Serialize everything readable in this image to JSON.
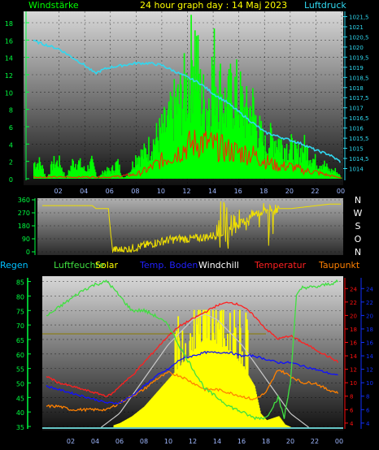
{
  "title": "24 hour graph day : 14 Maj 2023",
  "colors": {
    "wind": "#00ff00",
    "gust": "#ff2000",
    "pressure": "#30d8f0",
    "direction": "#f0e000",
    "humidity": "#40e040",
    "solar": "#ffff00",
    "soil_temp": "#1010ff",
    "windchill": "#ffffff",
    "temperature": "#ff2020",
    "dewpoint": "#ff8000",
    "rain": "#00c0ff",
    "axis_left": "#00ff40",
    "axis_right_red": "#ff1010",
    "axis_right_blue": "#1030ff"
  },
  "labels": {
    "windstaerke": "Windstärke",
    "luftdruck": "Luftdruck",
    "regen": "Regen",
    "luftfeuchte": "Luftfeuchte",
    "solar": "Solar",
    "temp_boden": "Temp. Boden",
    "windchill": "Windchill",
    "temperatur": "Temperatur",
    "taupunkt": "Taupunkt",
    "compass": [
      "N",
      "W",
      "S",
      "O",
      "N"
    ]
  },
  "chart_data": [
    {
      "type": "bar",
      "name": "wind-chart",
      "x_ticks": [
        "02",
        "04",
        "06",
        "08",
        "10",
        "12",
        "14",
        "16",
        "18",
        "20",
        "22",
        "00"
      ],
      "y_left_ticks": [
        "0",
        "2",
        "4",
        "6",
        "8",
        "10",
        "12",
        "14",
        "16",
        "18"
      ],
      "y_right_ticks": [
        "1014",
        "1014,5",
        "1015",
        "1015,5",
        "1016",
        "1016,5",
        "1017",
        "1017,5",
        "1018",
        "1018,5",
        "1019",
        "1019,5",
        "1020",
        "1020,5",
        "1021",
        "1021,5"
      ],
      "ylim_left": [
        0,
        18
      ],
      "ylim_right": [
        1013.5,
        1021.6
      ],
      "xlim": [
        0,
        24
      ],
      "wind_speed": [
        [
          0,
          2
        ],
        [
          0.5,
          2
        ],
        [
          1,
          0
        ],
        [
          1.5,
          2
        ],
        [
          2,
          2
        ],
        [
          2.5,
          0
        ],
        [
          3,
          2
        ],
        [
          3.5,
          2
        ],
        [
          4,
          1
        ],
        [
          4.5,
          2
        ],
        [
          5,
          0
        ],
        [
          5.5,
          1
        ],
        [
          6,
          1
        ],
        [
          6.5,
          2
        ],
        [
          7,
          0
        ],
        [
          7.5,
          1
        ],
        [
          8,
          3
        ],
        [
          8.5,
          3
        ],
        [
          9,
          4
        ],
        [
          9.5,
          5
        ],
        [
          10,
          6
        ],
        [
          10.5,
          7
        ],
        [
          11,
          9
        ],
        [
          11.5,
          10
        ],
        [
          12,
          12
        ],
        [
          12.5,
          17
        ],
        [
          13,
          10
        ],
        [
          13.5,
          9
        ],
        [
          14,
          14
        ],
        [
          14.5,
          11
        ],
        [
          15,
          9
        ],
        [
          15.5,
          11
        ],
        [
          16,
          10
        ],
        [
          16.5,
          8
        ],
        [
          17,
          9
        ],
        [
          17.5,
          6
        ],
        [
          18,
          4
        ],
        [
          18.5,
          5
        ],
        [
          19,
          5
        ],
        [
          19.5,
          4
        ],
        [
          20,
          4
        ],
        [
          20.5,
          3
        ],
        [
          21,
          4
        ],
        [
          21.5,
          3
        ],
        [
          22,
          2
        ],
        [
          22.5,
          2
        ],
        [
          23,
          1
        ],
        [
          23.5,
          1
        ],
        [
          24,
          0
        ]
      ],
      "gust_avg": [
        [
          0,
          0.2
        ],
        [
          2,
          0.2
        ],
        [
          4,
          0.2
        ],
        [
          6,
          0.2
        ],
        [
          8,
          0.5
        ],
        [
          9,
          1.2
        ],
        [
          10,
          2.2
        ],
        [
          11,
          3
        ],
        [
          12,
          4
        ],
        [
          13,
          4.5
        ],
        [
          14,
          4
        ],
        [
          15,
          3.5
        ],
        [
          16,
          3.2
        ],
        [
          17,
          3
        ],
        [
          18,
          2.2
        ],
        [
          19,
          1.5
        ],
        [
          20,
          1.5
        ],
        [
          21,
          1
        ],
        [
          22,
          0.8
        ],
        [
          23,
          0.4
        ],
        [
          24,
          0.1
        ]
      ],
      "pressure": [
        [
          0,
          1020.3
        ],
        [
          1,
          1020.1
        ],
        [
          2,
          1019.9
        ],
        [
          3,
          1019.5
        ],
        [
          4,
          1019.1
        ],
        [
          4.8,
          1018.7
        ],
        [
          5.5,
          1018.9
        ],
        [
          6,
          1019.0
        ],
        [
          7,
          1019.1
        ],
        [
          8,
          1019.2
        ],
        [
          9,
          1019.2
        ],
        [
          10,
          1019.1
        ],
        [
          11,
          1018.8
        ],
        [
          12,
          1018.5
        ],
        [
          13,
          1018.2
        ],
        [
          14,
          1017.7
        ],
        [
          15,
          1017.3
        ],
        [
          16,
          1016.8
        ],
        [
          17,
          1016.3
        ],
        [
          18,
          1015.8
        ],
        [
          19,
          1015.6
        ],
        [
          20,
          1015.4
        ],
        [
          21,
          1015.2
        ],
        [
          22,
          1014.9
        ],
        [
          23,
          1014.7
        ],
        [
          24,
          1014.3
        ]
      ]
    },
    {
      "type": "line",
      "name": "direction-chart",
      "y_ticks": [
        "0",
        "90",
        "180",
        "270",
        "360"
      ],
      "ylim": [
        0,
        360
      ],
      "direction": [
        [
          0,
          320
        ],
        [
          2,
          320
        ],
        [
          4,
          320
        ],
        [
          4.3,
          300
        ],
        [
          5,
          300
        ],
        [
          5.3,
          300
        ],
        [
          5.6,
          20
        ],
        [
          6,
          10
        ],
        [
          7,
          20
        ],
        [
          8,
          40
        ],
        [
          9,
          60
        ],
        [
          10,
          80
        ],
        [
          11,
          90
        ],
        [
          12,
          90
        ],
        [
          13,
          100
        ],
        [
          14,
          120
        ],
        [
          15,
          150
        ],
        [
          16,
          200
        ],
        [
          17,
          260
        ],
        [
          18,
          290
        ],
        [
          19,
          300
        ],
        [
          20,
          300
        ],
        [
          21,
          310
        ],
        [
          22,
          320
        ],
        [
          23,
          330
        ],
        [
          24,
          330
        ]
      ]
    },
    {
      "type": "line",
      "name": "temperature-chart",
      "y_left_ticks": [
        "35",
        "40",
        "45",
        "50",
        "55",
        "60",
        "65",
        "70",
        "75",
        "80",
        "85"
      ],
      "y_right_red_ticks": [
        "4",
        "6",
        "8",
        "10",
        "12",
        "14",
        "16",
        "18",
        "20",
        "22",
        "24"
      ],
      "y_right_blue_ticks": [
        "4",
        "6",
        "8",
        "10",
        "12",
        "14",
        "16",
        "18",
        "20",
        "22",
        "24"
      ],
      "ylim_left": [
        35,
        86
      ],
      "ylim_right": [
        3.5,
        25
      ],
      "humidity": [
        [
          0,
          73
        ],
        [
          1,
          76
        ],
        [
          2,
          79
        ],
        [
          3,
          82
        ],
        [
          4,
          84
        ],
        [
          5,
          85
        ],
        [
          6,
          80
        ],
        [
          7,
          75
        ],
        [
          8,
          75
        ],
        [
          9,
          73
        ],
        [
          10,
          70
        ],
        [
          11,
          62
        ],
        [
          12,
          55
        ],
        [
          13,
          48
        ],
        [
          14,
          45
        ],
        [
          15,
          42
        ],
        [
          16,
          40
        ],
        [
          17,
          38
        ],
        [
          18,
          38
        ],
        [
          19,
          45
        ],
        [
          19.5,
          38
        ],
        [
          20,
          50
        ],
        [
          20.5,
          80
        ],
        [
          21,
          83
        ],
        [
          22,
          83
        ],
        [
          23,
          84
        ],
        [
          24,
          85
        ]
      ],
      "temperature": [
        [
          0,
          11
        ],
        [
          1,
          10
        ],
        [
          2,
          9.5
        ],
        [
          3,
          9
        ],
        [
          4,
          8.5
        ],
        [
          5,
          8
        ],
        [
          5.5,
          8.5
        ],
        [
          6,
          9.5
        ],
        [
          7,
          11
        ],
        [
          8,
          13
        ],
        [
          9,
          15
        ],
        [
          10,
          17
        ],
        [
          11,
          18.5
        ],
        [
          12,
          19.5
        ],
        [
          13,
          20.5
        ],
        [
          14,
          21.5
        ],
        [
          15,
          22
        ],
        [
          16,
          21.5
        ],
        [
          17,
          20
        ],
        [
          18,
          18
        ],
        [
          19,
          16.5
        ],
        [
          20,
          17
        ],
        [
          21,
          16
        ],
        [
          22,
          15
        ],
        [
          23,
          14
        ],
        [
          24,
          13
        ]
      ],
      "soil_temp": [
        [
          0,
          9.5
        ],
        [
          1,
          9
        ],
        [
          2,
          8.5
        ],
        [
          3,
          8
        ],
        [
          4,
          7.5
        ],
        [
          5,
          7
        ],
        [
          6,
          7
        ],
        [
          7,
          8
        ],
        [
          8,
          9.5
        ],
        [
          9,
          11
        ],
        [
          10,
          12
        ],
        [
          11,
          13.5
        ],
        [
          12,
          14
        ],
        [
          13,
          14.5
        ],
        [
          14,
          14.5
        ],
        [
          15,
          14.5
        ],
        [
          16,
          14
        ],
        [
          17,
          14
        ],
        [
          18,
          13.5
        ],
        [
          19,
          13
        ],
        [
          20,
          13
        ],
        [
          21,
          12.5
        ],
        [
          22,
          12
        ],
        [
          23,
          11.5
        ],
        [
          24,
          11
        ]
      ],
      "dewpoint": [
        [
          0,
          6.5
        ],
        [
          1,
          6.5
        ],
        [
          2,
          6
        ],
        [
          3,
          6
        ],
        [
          4,
          6
        ],
        [
          5,
          6
        ],
        [
          6,
          7
        ],
        [
          7,
          8
        ],
        [
          8,
          9
        ],
        [
          9,
          10.5
        ],
        [
          10,
          11.5
        ],
        [
          11,
          11
        ],
        [
          12,
          10
        ],
        [
          13,
          9
        ],
        [
          14,
          9
        ],
        [
          15,
          8.5
        ],
        [
          16,
          8
        ],
        [
          17,
          7.5
        ],
        [
          18,
          8.5
        ],
        [
          19,
          12
        ],
        [
          20,
          11
        ],
        [
          21,
          10
        ],
        [
          22,
          10
        ],
        [
          23,
          9
        ],
        [
          24,
          8.5
        ]
      ],
      "solar_fraction": [
        [
          0,
          0
        ],
        [
          5,
          0
        ],
        [
          6,
          0.03
        ],
        [
          7,
          0.08
        ],
        [
          8,
          0.15
        ],
        [
          9,
          0.25
        ],
        [
          10,
          0.35
        ],
        [
          11,
          0.45
        ],
        [
          12,
          0.55
        ],
        [
          13,
          0.65
        ],
        [
          14,
          0.6
        ],
        [
          15,
          0.55
        ],
        [
          16,
          0.45
        ],
        [
          17,
          0.3
        ],
        [
          17.5,
          0.1
        ],
        [
          18,
          0.05
        ],
        [
          19,
          0.08
        ],
        [
          19.5,
          0.02
        ],
        [
          20,
          0
        ],
        [
          24,
          0
        ]
      ],
      "solar_max_curve": [
        [
          4.5,
          0
        ],
        [
          6,
          0.1
        ],
        [
          8,
          0.35
        ],
        [
          10,
          0.6
        ],
        [
          12,
          0.78
        ],
        [
          13,
          0.82
        ],
        [
          14,
          0.78
        ],
        [
          16,
          0.6
        ],
        [
          18,
          0.35
        ],
        [
          20,
          0.1
        ],
        [
          21.5,
          0
        ]
      ]
    }
  ]
}
